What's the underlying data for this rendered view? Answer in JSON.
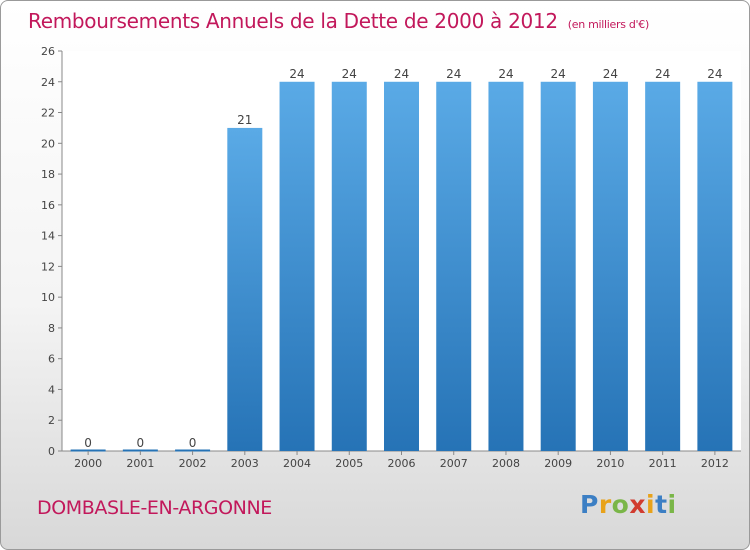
{
  "header": {
    "title": "Remboursements Annuels de la Dette de 2000 à 2012",
    "subtitle": "(en milliers d'€)"
  },
  "footer": {
    "town": "DOMBASLE-EN-ARGONNE",
    "logo": "Proxiti"
  },
  "colors": {
    "accent": "#c2185b",
    "bar_light": "#5aaae6",
    "bar_dark": "#2673b6"
  },
  "chart_data": {
    "type": "bar",
    "categories": [
      "2000",
      "2001",
      "2002",
      "2003",
      "2004",
      "2005",
      "2006",
      "2007",
      "2008",
      "2009",
      "2010",
      "2011",
      "2012"
    ],
    "values": [
      0,
      0,
      0,
      21,
      24,
      24,
      24,
      24,
      24,
      24,
      24,
      24,
      24
    ],
    "title": "Remboursements Annuels de la Dette de 2000 à 2012",
    "subtitle": "(en milliers d'€)",
    "xlabel": "",
    "ylabel": "",
    "ylim": [
      0,
      26
    ],
    "yticks": [
      0,
      2,
      4,
      6,
      8,
      10,
      12,
      14,
      16,
      18,
      20,
      22,
      24,
      26
    ],
    "grid": false,
    "data_labels": true
  }
}
